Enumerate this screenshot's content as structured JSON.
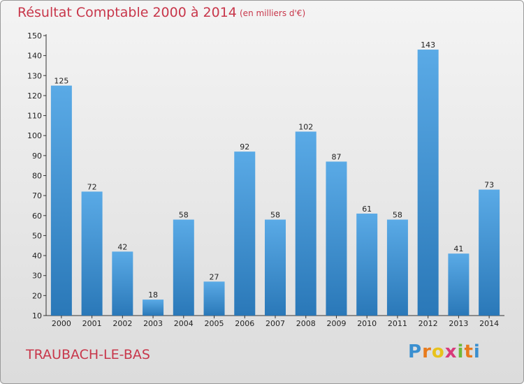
{
  "header": {
    "title": "Résultat Comptable 2000 à 2014",
    "subtitle": "(en milliers d'€)"
  },
  "footer": {
    "commune": "TRAUBACH-LE-BAS",
    "logo_letters": [
      "P",
      "r",
      "o",
      "x",
      "i",
      "t",
      "i"
    ],
    "logo_colors": [
      "#3a8fd0",
      "#e87b1c",
      "#e8c21c",
      "#d83a7a",
      "#6fb83a",
      "#e87b1c",
      "#3a8fd0"
    ]
  },
  "colors": {
    "bar_top": "#5aaae6",
    "bar_bottom": "#2a78b8",
    "title": "#c8364a"
  },
  "chart_data": {
    "type": "bar",
    "title": "Résultat Comptable 2000 à 2014",
    "subtitle": "(en milliers d'€)",
    "xlabel": "",
    "ylabel": "",
    "categories": [
      "2000",
      "2001",
      "2002",
      "2003",
      "2004",
      "2005",
      "2006",
      "2007",
      "2008",
      "2009",
      "2010",
      "2011",
      "2012",
      "2013",
      "2014"
    ],
    "values": [
      125,
      72,
      42,
      18,
      58,
      27,
      92,
      58,
      102,
      87,
      61,
      58,
      143,
      41,
      73
    ],
    "ylim": [
      10,
      150
    ],
    "yticks": [
      10,
      20,
      30,
      40,
      50,
      60,
      70,
      80,
      90,
      100,
      110,
      120,
      130,
      140,
      150
    ],
    "grid": false
  }
}
